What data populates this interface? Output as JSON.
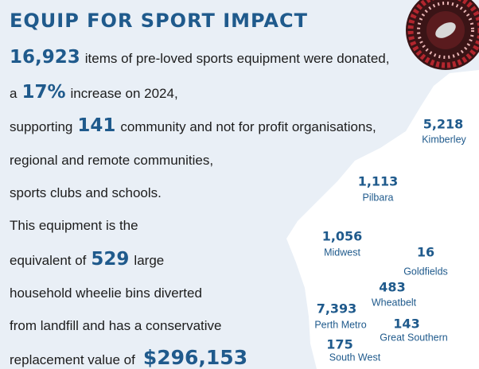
{
  "title": "EQUIP FOR SPORT IMPACT",
  "donation": {
    "count": "16,923",
    "text": "items of pre-loved sports equipment were donated,"
  },
  "increase": {
    "prefix": "a",
    "percent": "17%",
    "text": "increase on 2024,"
  },
  "support": {
    "prefix": "supporting",
    "count": "141",
    "text": "community and not for profit organisations,"
  },
  "support_lines": [
    "regional and remote communities,",
    "sports clubs and schools."
  ],
  "equivalence": {
    "intro": "This equipment is the",
    "prefix": "equivalent of",
    "bins": "529",
    "suffix": "large",
    "lines": [
      "household wheelie bins diverted",
      "from landfill and has a conservative"
    ],
    "value_prefix": "replacement value of",
    "value": "$296,153"
  },
  "regions": [
    {
      "count": "5,218",
      "name": "Kimberley"
    },
    {
      "count": "1,113",
      "name": "Pilbara"
    },
    {
      "count": "1,056",
      "name": "Midwest"
    },
    {
      "count": "16",
      "name": "Goldfields"
    },
    {
      "count": "483",
      "name": "Wheatbelt"
    },
    {
      "count": "7,393",
      "name": "Perth Metro"
    },
    {
      "count": "143",
      "name": "Great Southern"
    },
    {
      "count": "175",
      "name": "South West"
    }
  ]
}
